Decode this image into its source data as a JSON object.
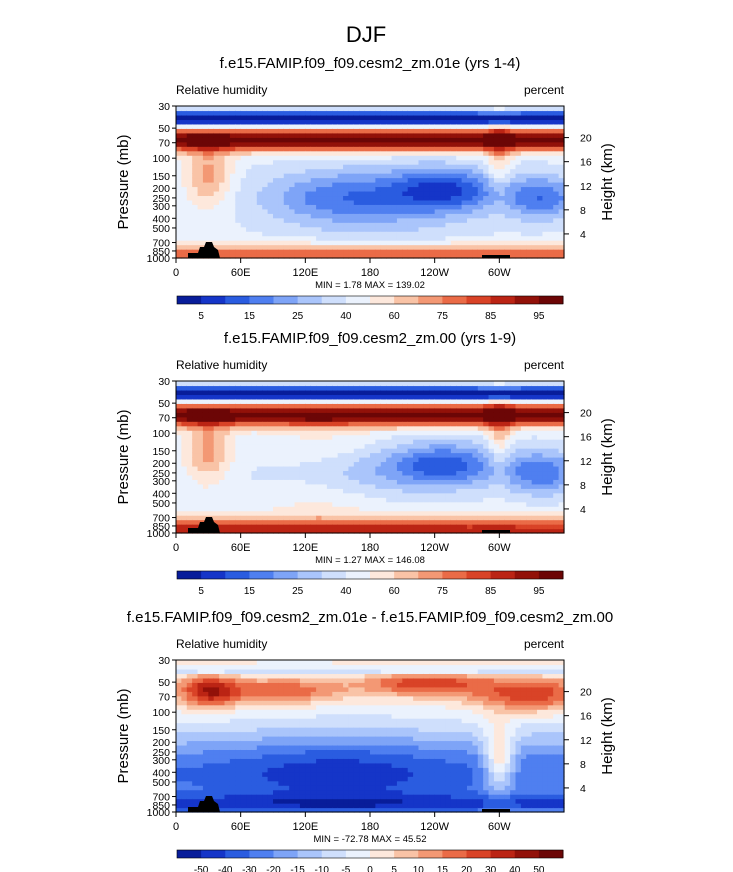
{
  "figure": {
    "title": "DJF"
  },
  "chart_data": [
    {
      "type": "heatmap",
      "title": "f.e15.FAMIP.f09_f09.cesm2_zm.01e (yrs 1-4)",
      "left_label": "Relative humidity",
      "right_label": "percent",
      "ylabel": "Pressure (mb)",
      "ylabel_right": "Height (km)",
      "x_ticks": [
        "0",
        "60E",
        "120E",
        "180",
        "120W",
        "60W"
      ],
      "y_ticks": [
        "30",
        "50",
        "70",
        "100",
        "150",
        "200",
        "250",
        "300",
        "400",
        "500",
        "700",
        "850",
        "1000"
      ],
      "height_ticks": [
        "20",
        "16",
        "12",
        "8",
        "4"
      ],
      "stats": "MIN =   1.78  MAX = 139.02",
      "colorbar_labels": [
        "5",
        "15",
        "25",
        "40",
        "60",
        "75",
        "85",
        "95"
      ],
      "colors": [
        "#081d9a",
        "#1535c8",
        "#2a5ce0",
        "#4f7ff0",
        "#7ea4f7",
        "#aac5fb",
        "#cfdffc",
        "#ebf2fd",
        "#fde8dc",
        "#f9c3a6",
        "#f39874",
        "#ea6b47",
        "#d94327",
        "#bb2414",
        "#921109",
        "#6c0606"
      ]
    },
    {
      "type": "heatmap",
      "title": "f.e15.FAMIP.f09_f09.cesm2_zm.00 (yrs 1-9)",
      "left_label": "Relative humidity",
      "right_label": "percent",
      "ylabel": "Pressure (mb)",
      "ylabel_right": "Height (km)",
      "x_ticks": [
        "0",
        "60E",
        "120E",
        "180",
        "120W",
        "60W"
      ],
      "y_ticks": [
        "30",
        "50",
        "70",
        "100",
        "150",
        "200",
        "250",
        "300",
        "400",
        "500",
        "700",
        "850",
        "1000"
      ],
      "height_ticks": [
        "20",
        "16",
        "12",
        "8",
        "4"
      ],
      "stats": "MIN =   1.27  MAX = 146.08",
      "colorbar_labels": [
        "5",
        "15",
        "25",
        "40",
        "60",
        "75",
        "85",
        "95"
      ],
      "colors": [
        "#081d9a",
        "#1535c8",
        "#2a5ce0",
        "#4f7ff0",
        "#7ea4f7",
        "#aac5fb",
        "#cfdffc",
        "#ebf2fd",
        "#fde8dc",
        "#f9c3a6",
        "#f39874",
        "#ea6b47",
        "#d94327",
        "#bb2414",
        "#921109",
        "#6c0606"
      ]
    },
    {
      "type": "heatmap",
      "title": "f.e15.FAMIP.f09_f09.cesm2_zm.01e - f.e15.FAMIP.f09_f09.cesm2_zm.00",
      "left_label": "Relative humidity",
      "right_label": "percent",
      "ylabel": "Pressure (mb)",
      "ylabel_right": "Height (km)",
      "x_ticks": [
        "0",
        "60E",
        "120E",
        "180",
        "120W",
        "60W"
      ],
      "y_ticks": [
        "30",
        "50",
        "70",
        "100",
        "150",
        "200",
        "250",
        "300",
        "400",
        "500",
        "700",
        "850",
        "1000"
      ],
      "height_ticks": [
        "20",
        "16",
        "12",
        "8",
        "4"
      ],
      "stats": "MIN = -72.78  MAX =  45.52",
      "colorbar_labels": [
        "-50",
        "-40",
        "-30",
        "-20",
        "-15",
        "-10",
        "-5",
        "0",
        "5",
        "10",
        "15",
        "20",
        "30",
        "40",
        "50"
      ],
      "colors": [
        "#081d9a",
        "#1535c8",
        "#2a5ce0",
        "#4f7ff0",
        "#7ea4f7",
        "#aac5fb",
        "#cfdffc",
        "#ebf2fd",
        "#fde8dc",
        "#f9c3a6",
        "#f39874",
        "#ea6b47",
        "#d94327",
        "#bb2414",
        "#921109",
        "#6c0606"
      ]
    }
  ]
}
